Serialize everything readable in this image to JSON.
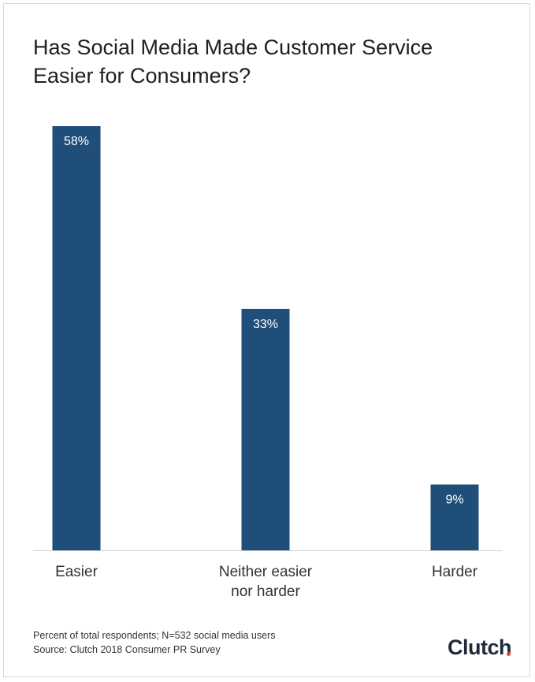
{
  "title_line1": "Has Social Media Made Customer Service",
  "title_line2": "Easier for Consumers?",
  "chart_data": {
    "type": "bar",
    "title": "Has Social Media Made Customer Service Easier for Consumers?",
    "categories": [
      "Easier",
      "Neither easier nor harder",
      "Harder"
    ],
    "category_lines": [
      [
        "Easier"
      ],
      [
        "Neither easier",
        "nor harder"
      ],
      [
        "Harder"
      ]
    ],
    "values": [
      58,
      33,
      9
    ],
    "data_labels": [
      "58%",
      "33%",
      "9%"
    ],
    "unit": "%",
    "ylim": [
      0,
      58
    ],
    "grid": false,
    "legend": "none",
    "bar_color": "#1f4e79",
    "label_color": "#ffffff"
  },
  "footnote": {
    "line1": "Percent of total respondents; N=532 social media users",
    "line2": "Source: Clutch 2018 Consumer PR Survey"
  },
  "brand": {
    "name": "Clutch",
    "accent": "#e5492c"
  }
}
